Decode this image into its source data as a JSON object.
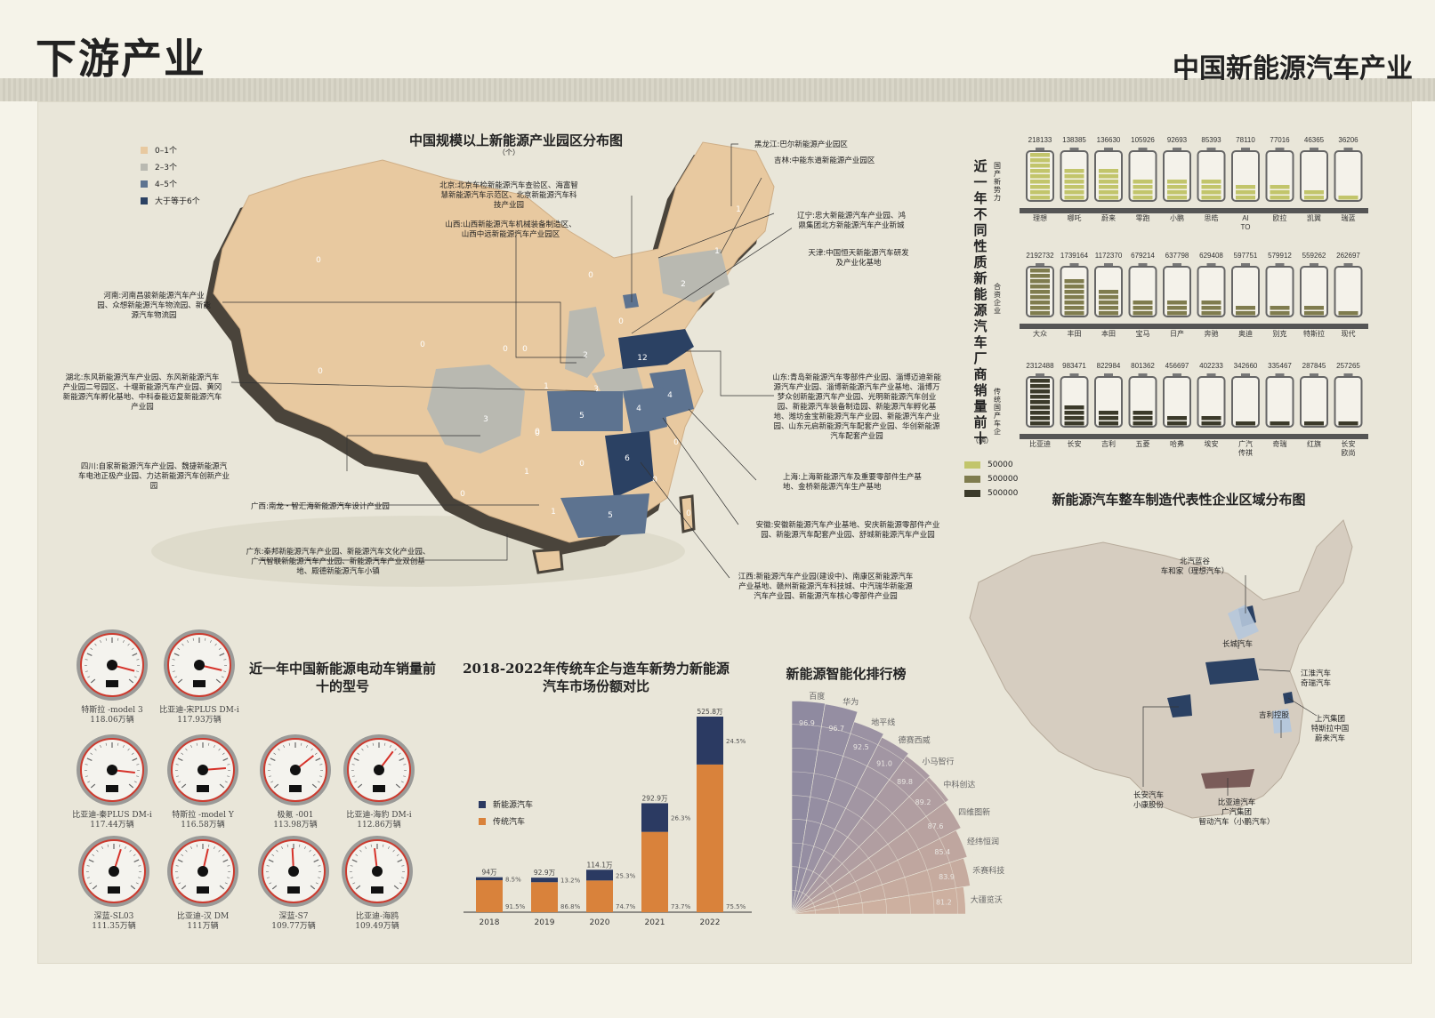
{
  "header": {
    "title": "下游产业",
    "subtitle": "中国新能源汽车产业"
  },
  "map_park": {
    "title": "中国规模以上新能源产业园区分布图",
    "unit": "（个）",
    "legend": [
      {
        "label": "0–1个",
        "color": "#e8c9a0"
      },
      {
        "label": "2–3个",
        "color": "#b9b9b1"
      },
      {
        "label": "4–5个",
        "color": "#5d7390"
      },
      {
        "label": "大于等于6个",
        "color": "#2b4163"
      }
    ],
    "region_numbers": [
      "0",
      "0",
      "0",
      "1",
      "1",
      "2",
      "0",
      "2",
      "12",
      "0",
      "3",
      "3",
      "4",
      "4",
      "5",
      "6",
      "0",
      "1",
      "0",
      "1",
      "0",
      "5",
      "0",
      "1",
      "0",
      "0",
      "0",
      "0",
      "0"
    ],
    "annotations": {
      "heilongjiang": "黑龙江:巴尔新能源产业园区",
      "jilin": "吉林:中能东道新能源产业园区",
      "beijing": "北京:北京车检新能源汽车查验区、海富智慧新能源汽车示范区、北京新能源汽车科技产业园",
      "shanxi": "山西:山西新能源汽车机械装备制造区、山西中远新能源汽车产业园区",
      "liaoning": "辽宁:忠大新能源汽车产业园、鸿鼎集团北方新能源汽车产业新城",
      "tianjin": "天津:中国恒天新能源汽车研发及产业化基地",
      "henan": "河南:河南昌骏新能源汽车产业园、众想新能源汽车物流园、新能源汽车物流园",
      "hubei": "湖北:东风新能源汽车产业园、东风新能源汽车产业园二号园区、十堰新能源汽车产业园、黄冈新能源汽车孵化基地、中科泰能迈复新能源汽车产业园",
      "shandong": "山东:青岛新能源汽车零部件产业园、淄博迈迪新能源汽车产业园、淄博新能源汽车产业基地、淄博万梦众创新能源汽车产业园、光明新能源汽车创业园、新能源汽车装备制造园、新能源汽车孵化基地、潍坊金宝新能源汽车产业园、新能源汽车产业园、山东元启新能源汽车配套产业园、华创新能源汽车配套产业园",
      "sichuan": "四川:自家新能源汽车产业园、魏捷新能源汽车电池正极产业园、力达新能源汽车创新产业园",
      "shanghai": "上海:上海新能源汽车及重要零部件生产基地、金桥新能源汽车生产基地",
      "guangxi": "广西:南龙・智汇海新能源汽车设计产业园",
      "anhui": "安徽:安徽新能源汽车产业基地、安庆新能源零部件产业园、新能源汽车配套产业园、舒城新能源汽车产业园",
      "guangdong": "广东:秦邦新能源汽车产业园、新能源汽车文化产业园、广汽智联新能源汽车产业园、新能源汽车产业双创基地、殿德新能源汽车小镇",
      "jiangxi": "江西:新能源汽车产业园(建设中)、南康区新能源汽车产业基地、赣州新能源汽车科技城、中汽瑞华新能源汽车产业园、新能源汽车核心零部件产业园"
    }
  },
  "sales_top10": {
    "title": "近一年不同性质新能源汽车厂商销量前十",
    "unit": "（辆）",
    "groups": [
      {
        "label": "国产新势力",
        "color": "#c2c56b",
        "max": 218133,
        "values": [
          218133,
          138385,
          136630,
          105926,
          92693,
          85393,
          78110,
          77016,
          46365,
          36206
        ],
        "names": [
          "理想",
          "哪吒",
          "蔚来",
          "零跑",
          "小鹏",
          "思皓",
          "AITO",
          "欧拉",
          "凯翼",
          "瑞蓝"
        ]
      },
      {
        "label": "合资企业",
        "color": "#7f7c4e",
        "max": 2192732,
        "values": [
          2192732,
          1739164,
          1172370,
          679214,
          637798,
          629408,
          597751,
          579912,
          559262,
          262697
        ],
        "names": [
          "大众",
          "丰田",
          "本田",
          "宝马",
          "日产",
          "奔驰",
          "奥迪",
          "别克",
          "特斯拉",
          "现代"
        ]
      },
      {
        "label": "传统国产车企",
        "color": "#3b3a2a",
        "max": 2312488,
        "values": [
          2312488,
          983471,
          822984,
          801362,
          456697,
          402233,
          342660,
          335467,
          287845,
          257265
        ],
        "names": [
          "比亚迪",
          "长安",
          "吉利",
          "五菱",
          "哈弗",
          "埃安",
          "广汽传祺",
          "奇瑞",
          "红旗",
          "长安欧尚"
        ]
      }
    ],
    "legend": [
      {
        "label": "50000",
        "color": "#c2c56b"
      },
      {
        "label": "500000",
        "color": "#7f7c4e"
      },
      {
        "label": "500000",
        "color": "#3b3a2a"
      }
    ]
  },
  "enterprise_map": {
    "title": "新能源汽车整车制造代表性企业区域分布图",
    "labels": [
      "北汽蓝谷",
      "车和家（理想汽车）",
      "长城汽车",
      "江淮汽车",
      "奇瑞汽车",
      "上汽集团",
      "特斯拉中国",
      "蔚来汽车",
      "吉利控股",
      "长安汽车",
      "小康股份",
      "比亚迪汽车",
      "广汽集团",
      "智动汽车（小鹏汽车）"
    ]
  },
  "gauges": {
    "title": "近一年中国新能源电动车销量前十的型号",
    "items": [
      {
        "name": "特斯拉 -model 3",
        "value": "118.06万辆",
        "v": 118.06
      },
      {
        "name": "比亚迪-宋PLUS DM-i",
        "value": "117.93万辆",
        "v": 117.93
      },
      {
        "name": "比亚迪-秦PLUS DM-i",
        "value": "117.44万辆",
        "v": 117.44
      },
      {
        "name": "特斯拉 -model Y",
        "value": "116.58万辆",
        "v": 116.58
      },
      {
        "name": "极氪 -001",
        "value": "113.98万辆",
        "v": 113.98
      },
      {
        "name": "比亚迪-海豹 DM-i",
        "value": "112.86万辆",
        "v": 112.86
      },
      {
        "name": "深蓝-SL03",
        "value": "111.35万辆",
        "v": 111.35
      },
      {
        "name": "比亚迪-汉 DM",
        "value": "111万辆",
        "v": 111
      },
      {
        "name": "深蓝-S7",
        "value": "109.77万辆",
        "v": 109.77
      },
      {
        "name": "比亚迪-海鸥",
        "value": "109.49万辆",
        "v": 109.49
      }
    ]
  },
  "chart_data": [
    {
      "type": "bar",
      "title": "2018-2022年传统车企与造车新势力新能源汽车市场份额对比",
      "categories": [
        "2018",
        "2019",
        "2020",
        "2021",
        "2022"
      ],
      "totals": [
        "94万",
        "92.9万",
        "114.1万",
        "292.9万",
        "525.8万"
      ],
      "total_values": [
        94,
        92.9,
        114.1,
        292.9,
        525.8
      ],
      "series": [
        {
          "name": "新能源汽车",
          "color": "#2b3a62",
          "pct_labels": [
            "8.5%",
            "13.2%",
            "25.3%",
            "26.3%",
            "24.5%"
          ],
          "pct": [
            8.5,
            13.2,
            25.3,
            26.3,
            24.5
          ]
        },
        {
          "name": "传统汽车",
          "color": "#d9823b",
          "pct_labels": [
            "91.5%",
            "86.8%",
            "74.7%",
            "73.7%",
            "75.5%"
          ],
          "pct": [
            91.5,
            86.8,
            74.7,
            73.7,
            75.5
          ]
        }
      ]
    },
    {
      "type": "bar",
      "title": "新能源智能化排行榜",
      "categories": [
        "百度",
        "华为",
        "地平线",
        "德赛西威",
        "小马智行",
        "中科创达",
        "四维图新",
        "经纬恒润",
        "禾赛科技",
        "大疆览沃"
      ],
      "values": [
        96.9,
        96.7,
        92.5,
        91.0,
        89.8,
        89.2,
        87.6,
        85.4,
        83.9,
        81.2
      ],
      "value_labels": [
        "96.9",
        "96.7",
        "92.5",
        "91.0",
        "89.8",
        "89.2",
        "87.6",
        "85.4",
        "83.9",
        "81.2"
      ]
    }
  ]
}
